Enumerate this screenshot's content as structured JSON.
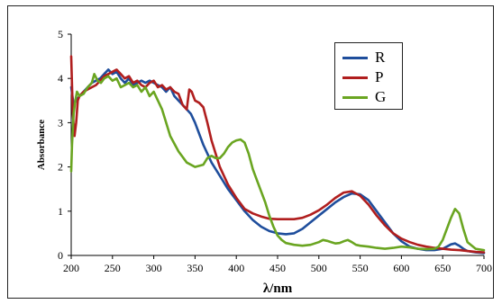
{
  "chart_data": {
    "type": "line",
    "xlabel": "λ/nm",
    "ylabel": "Absorbance",
    "xlim": [
      200,
      700
    ],
    "ylim": [
      0,
      5
    ],
    "xticks": [
      "200",
      "250",
      "300",
      "350",
      "400",
      "450",
      "500",
      "550",
      "600",
      "650",
      "700"
    ],
    "yticks": [
      "0",
      "1",
      "2",
      "3",
      "4",
      "5"
    ],
    "grid": false,
    "legend_position": "top-right",
    "series": [
      {
        "name": "R",
        "color": "#1f4e9c",
        "x": [
          200,
          203,
          206,
          210,
          215,
          220,
          225,
          230,
          235,
          240,
          245,
          250,
          255,
          260,
          265,
          270,
          275,
          280,
          285,
          290,
          295,
          300,
          305,
          310,
          315,
          320,
          325,
          330,
          335,
          340,
          345,
          350,
          360,
          370,
          380,
          390,
          400,
          410,
          420,
          430,
          440,
          450,
          460,
          470,
          480,
          490,
          500,
          510,
          520,
          530,
          540,
          550,
          560,
          570,
          580,
          590,
          600,
          610,
          620,
          630,
          640,
          650,
          655,
          660,
          665,
          670,
          675,
          680,
          690,
          700
        ],
        "y": [
          3.8,
          3.4,
          3.5,
          3.6,
          3.7,
          3.8,
          3.9,
          3.95,
          4.0,
          4.1,
          4.2,
          4.1,
          4.15,
          4.0,
          3.9,
          4.0,
          3.85,
          3.9,
          3.95,
          3.9,
          3.95,
          3.9,
          3.85,
          3.8,
          3.7,
          3.8,
          3.6,
          3.5,
          3.4,
          3.3,
          3.2,
          3.0,
          2.5,
          2.1,
          1.8,
          1.5,
          1.25,
          1.0,
          0.8,
          0.65,
          0.55,
          0.5,
          0.48,
          0.5,
          0.6,
          0.75,
          0.9,
          1.05,
          1.2,
          1.32,
          1.4,
          1.38,
          1.25,
          1.0,
          0.75,
          0.5,
          0.32,
          0.2,
          0.15,
          0.12,
          0.12,
          0.15,
          0.2,
          0.25,
          0.27,
          0.22,
          0.15,
          0.1,
          0.07,
          0.05
        ]
      },
      {
        "name": "P",
        "color": "#b01e1e",
        "x": [
          200,
          202,
          204,
          206,
          208,
          210,
          215,
          220,
          225,
          230,
          235,
          240,
          245,
          250,
          255,
          260,
          265,
          270,
          275,
          280,
          285,
          290,
          295,
          300,
          305,
          310,
          315,
          320,
          325,
          330,
          335,
          340,
          343,
          346,
          350,
          355,
          360,
          365,
          370,
          380,
          390,
          400,
          410,
          420,
          430,
          440,
          450,
          460,
          470,
          480,
          490,
          500,
          510,
          520,
          530,
          540,
          550,
          560,
          570,
          580,
          590,
          600,
          610,
          620,
          630,
          640,
          650,
          660,
          670,
          680,
          690,
          700
        ],
        "y": [
          4.5,
          3.2,
          2.7,
          3.0,
          3.5,
          3.6,
          3.7,
          3.75,
          3.8,
          3.85,
          3.95,
          4.05,
          4.1,
          4.15,
          4.2,
          4.1,
          4.0,
          4.05,
          3.9,
          3.95,
          3.85,
          3.8,
          3.9,
          3.95,
          3.8,
          3.85,
          3.75,
          3.8,
          3.7,
          3.65,
          3.4,
          3.3,
          3.75,
          3.7,
          3.5,
          3.45,
          3.35,
          3.0,
          2.6,
          2.0,
          1.6,
          1.3,
          1.05,
          0.95,
          0.88,
          0.83,
          0.82,
          0.82,
          0.82,
          0.85,
          0.92,
          1.02,
          1.15,
          1.3,
          1.42,
          1.45,
          1.35,
          1.15,
          0.9,
          0.68,
          0.5,
          0.38,
          0.3,
          0.24,
          0.2,
          0.17,
          0.15,
          0.13,
          0.12,
          0.1,
          0.08,
          0.07
        ]
      },
      {
        "name": "G",
        "color": "#6aa521",
        "x": [
          200,
          201,
          203,
          205,
          207,
          210,
          215,
          220,
          225,
          228,
          232,
          236,
          240,
          245,
          250,
          255,
          260,
          265,
          270,
          275,
          280,
          285,
          290,
          295,
          300,
          305,
          310,
          320,
          330,
          340,
          350,
          360,
          365,
          370,
          375,
          380,
          385,
          390,
          395,
          400,
          405,
          410,
          415,
          420,
          425,
          430,
          435,
          440,
          445,
          450,
          455,
          460,
          470,
          480,
          490,
          500,
          505,
          510,
          515,
          520,
          525,
          530,
          535,
          540,
          545,
          550,
          560,
          570,
          580,
          590,
          600,
          610,
          620,
          630,
          640,
          645,
          650,
          655,
          660,
          665,
          670,
          675,
          680,
          690,
          700
        ],
        "y": [
          1.9,
          2.5,
          3.2,
          3.5,
          3.7,
          3.6,
          3.65,
          3.8,
          3.9,
          4.1,
          3.95,
          3.9,
          4.0,
          4.05,
          3.95,
          4.0,
          3.8,
          3.85,
          3.9,
          3.8,
          3.85,
          3.7,
          3.8,
          3.6,
          3.7,
          3.5,
          3.3,
          2.7,
          2.35,
          2.1,
          2.0,
          2.05,
          2.2,
          2.25,
          2.2,
          2.2,
          2.3,
          2.45,
          2.55,
          2.6,
          2.62,
          2.55,
          2.3,
          1.95,
          1.7,
          1.45,
          1.2,
          0.9,
          0.65,
          0.45,
          0.35,
          0.28,
          0.24,
          0.22,
          0.24,
          0.3,
          0.35,
          0.33,
          0.3,
          0.27,
          0.28,
          0.32,
          0.35,
          0.3,
          0.24,
          0.22,
          0.2,
          0.17,
          0.15,
          0.17,
          0.2,
          0.18,
          0.15,
          0.14,
          0.15,
          0.2,
          0.35,
          0.6,
          0.85,
          1.05,
          0.95,
          0.6,
          0.3,
          0.15,
          0.12
        ]
      }
    ]
  }
}
